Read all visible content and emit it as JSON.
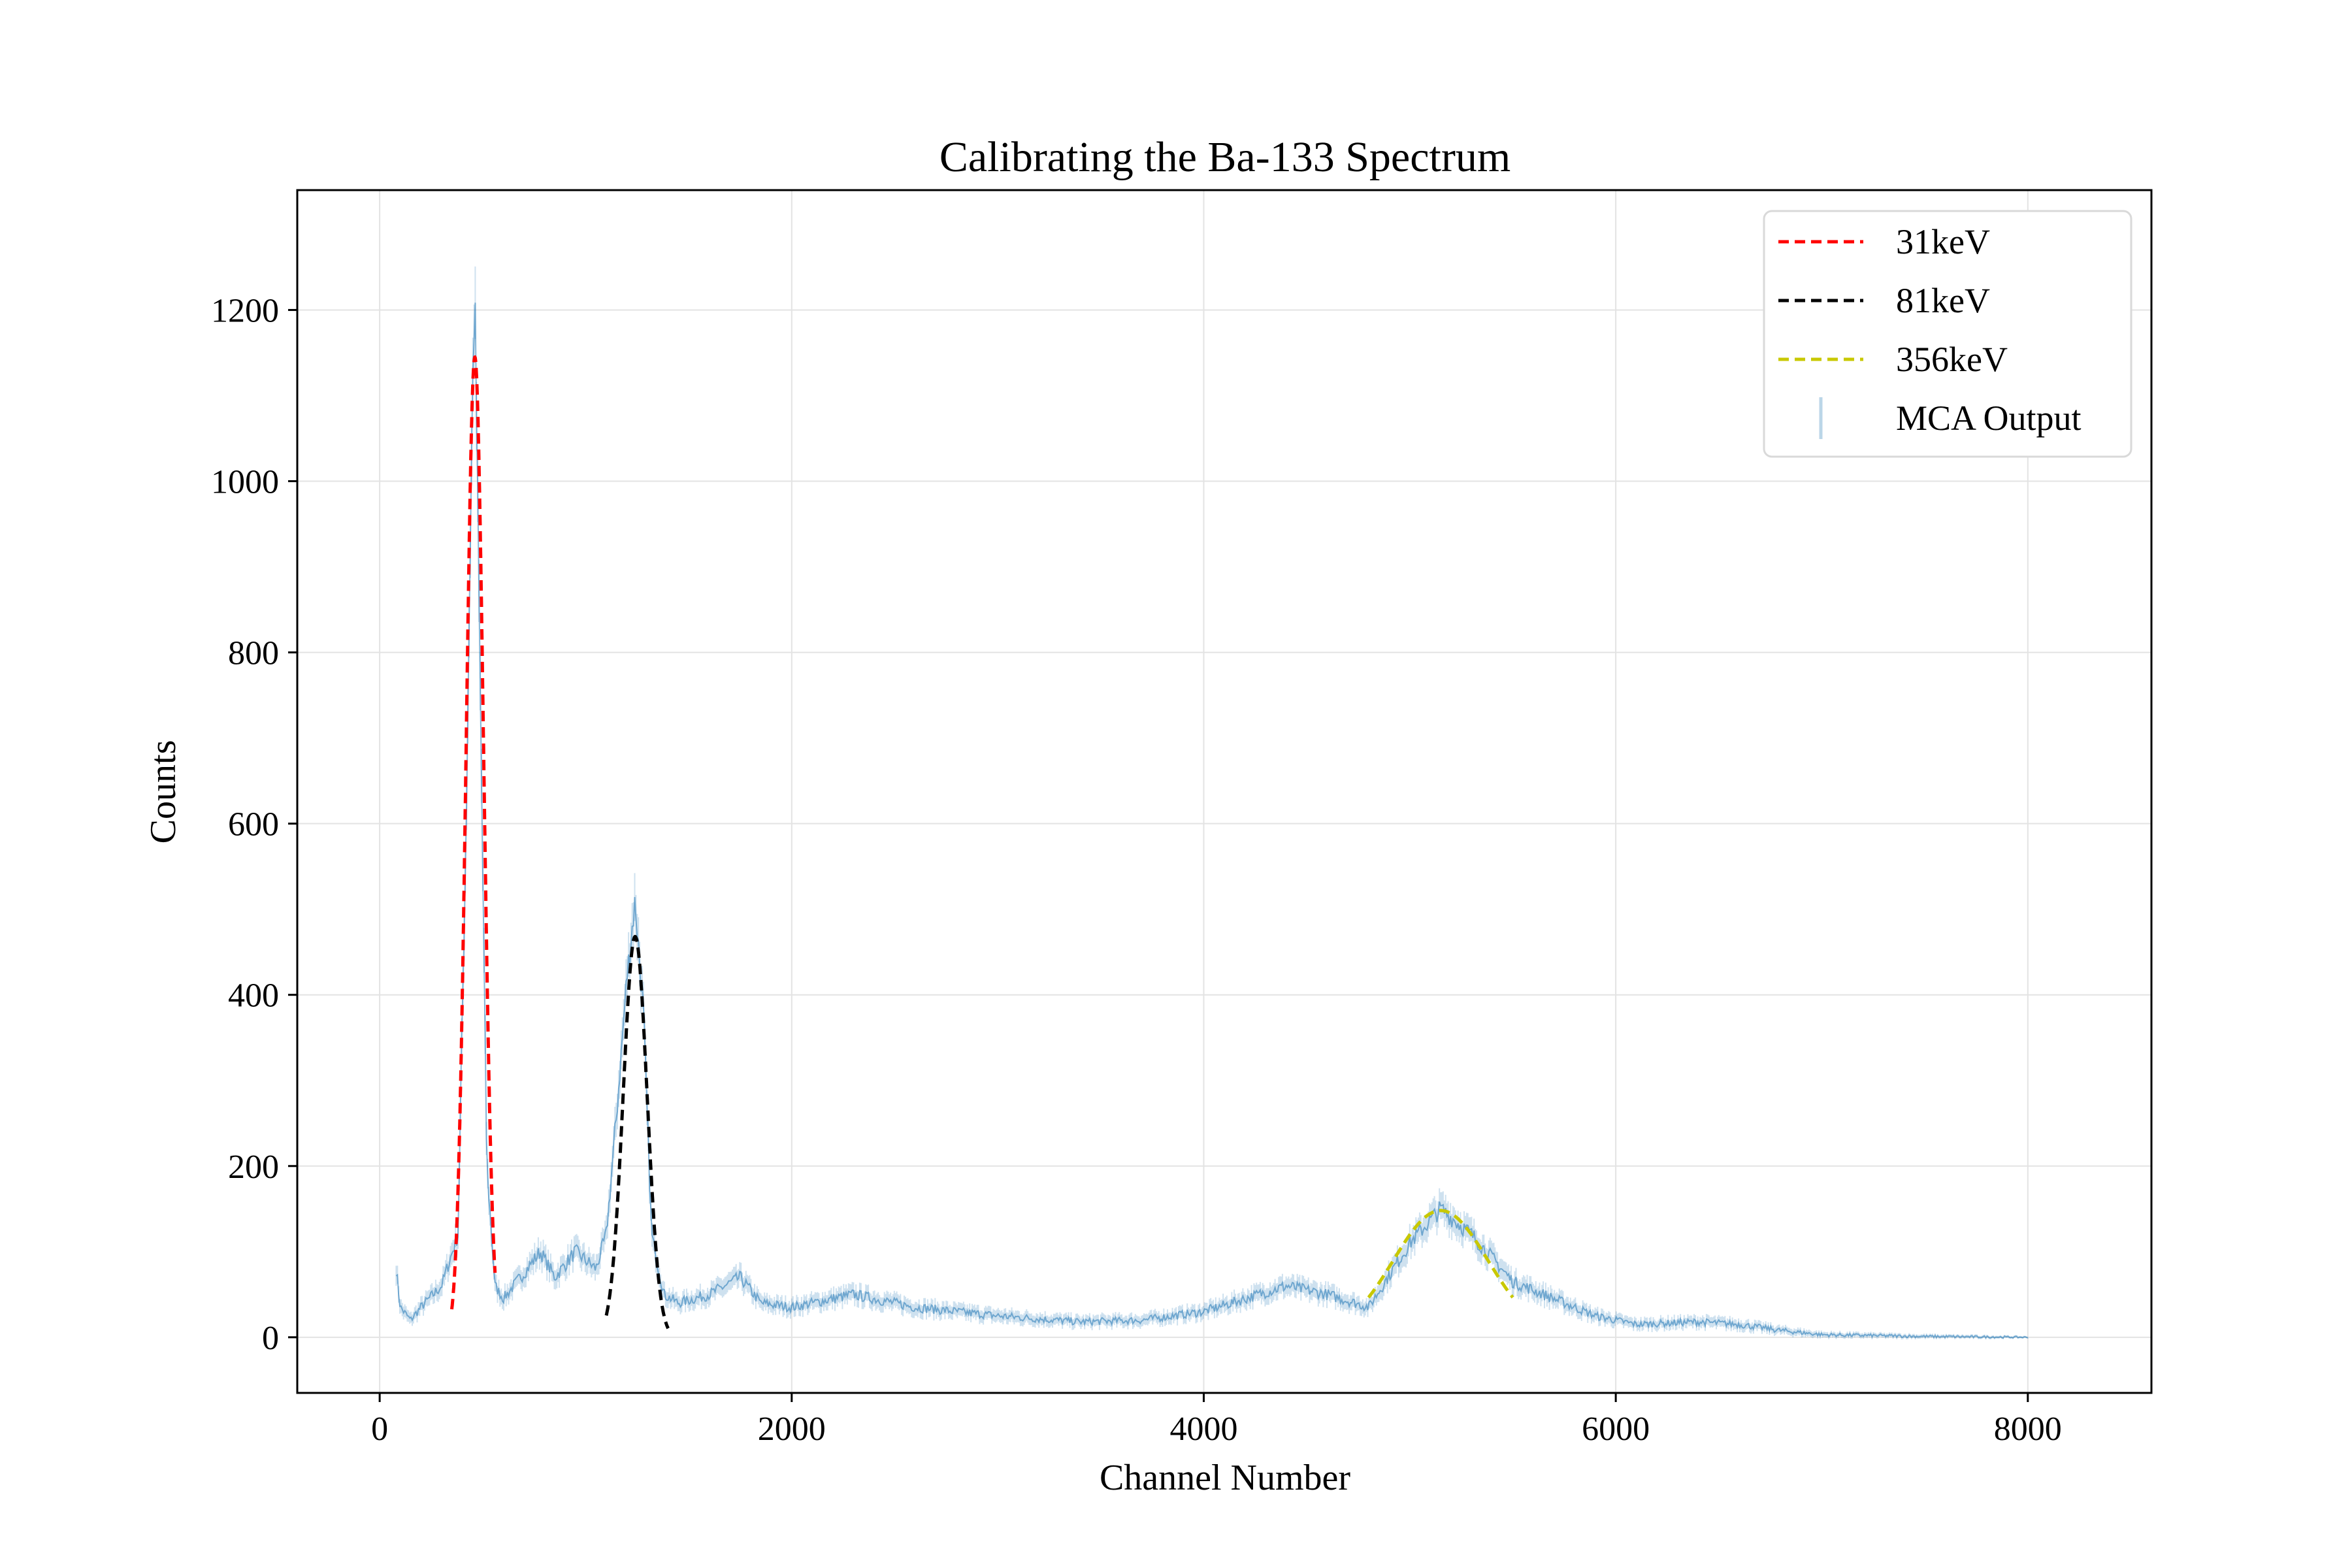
{
  "chart_data": {
    "type": "line",
    "title": "Calibrating the Ba-133 Spectrum",
    "xlabel": "Channel Number",
    "ylabel": "Counts",
    "xlim": [
      -400,
      8600
    ],
    "ylim": [
      -65,
      1340
    ],
    "grid": true,
    "legend_position": "top-right",
    "xticks": [
      0,
      2000,
      4000,
      6000,
      8000
    ],
    "yticks": [
      0,
      200,
      400,
      600,
      800,
      1000,
      1200
    ],
    "series": [
      {
        "name": "31keV",
        "style": "dashed",
        "color": "#ff0000",
        "kind": "gaussian_fit",
        "amplitude": 1145,
        "center": 462,
        "sigma": 42,
        "x_range": [
          350,
          560
        ]
      },
      {
        "name": "81keV",
        "style": "dashed",
        "color": "#000000",
        "kind": "gaussian_fit",
        "amplitude": 468,
        "center": 1240,
        "sigma": 58,
        "x_range": [
          1100,
          1400
        ]
      },
      {
        "name": "356keV",
        "style": "dashed",
        "color": "#c8c800",
        "kind": "gaussian_fit",
        "amplitude": 148,
        "center": 5150,
        "sigma": 230,
        "x_range": [
          4800,
          5500
        ]
      },
      {
        "name": "MCA Output",
        "style": "errorbar",
        "color": "#1f77b4",
        "x": [
          80,
          100,
          150,
          200,
          300,
          380,
          420,
          450,
          462,
          480,
          520,
          560,
          600,
          700,
          780,
          850,
          950,
          1000,
          1050,
          1100,
          1150,
          1200,
          1240,
          1280,
          1320,
          1380,
          1450,
          1600,
          1750,
          1850,
          2000,
          2300,
          2600,
          3000,
          3400,
          3700,
          4000,
          4200,
          4400,
          4600,
          4800,
          5000,
          5150,
          5300,
          5500,
          5700,
          5900,
          6100,
          6400,
          6600,
          6800,
          7000,
          7500,
          8000
        ],
        "y": [
          80,
          35,
          20,
          35,
          60,
          120,
          600,
          1100,
          1220,
          900,
          200,
          60,
          45,
          75,
          100,
          70,
          100,
          90,
          80,
          120,
          260,
          420,
          510,
          380,
          120,
          50,
          40,
          50,
          70,
          40,
          35,
          50,
          35,
          25,
          18,
          20,
          30,
          45,
          60,
          50,
          35,
          110,
          150,
          120,
          65,
          45,
          25,
          15,
          18,
          15,
          8,
          3,
          1,
          0
        ]
      }
    ]
  }
}
